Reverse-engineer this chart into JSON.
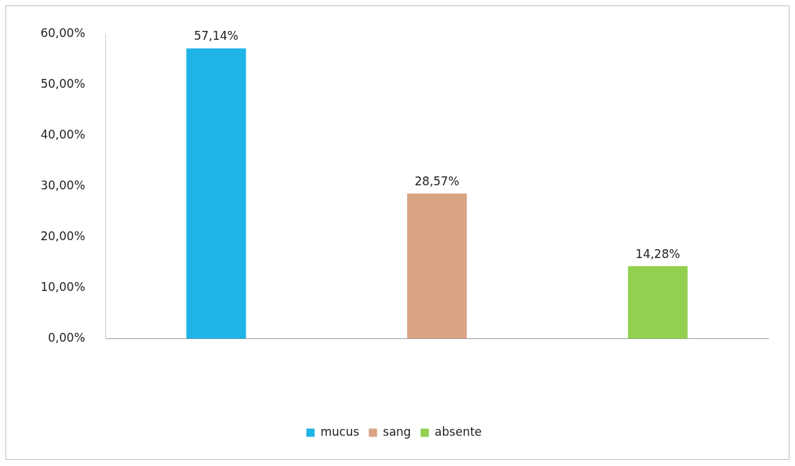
{
  "chart_data": {
    "type": "bar",
    "categories": [
      null,
      null,
      null
    ],
    "series": [
      {
        "name": "mucus",
        "color": "#1fb4e8",
        "values": [
          57.14,
          null,
          null
        ],
        "value_labels": [
          "57,14%",
          null,
          null
        ]
      },
      {
        "name": "sang",
        "color": "#d9a384",
        "values": [
          null,
          28.57,
          null
        ],
        "value_labels": [
          null,
          "28,57%",
          null
        ]
      },
      {
        "name": "absente",
        "color": "#92d050",
        "values": [
          null,
          null,
          14.28
        ],
        "value_labels": [
          null,
          null,
          "14,28%"
        ]
      }
    ],
    "ylim": [
      0,
      60
    ],
    "yticks": [
      {
        "value": 0,
        "label": "0,00%"
      },
      {
        "value": 10,
        "label": "10,00%"
      },
      {
        "value": 20,
        "label": "20,00%"
      },
      {
        "value": 30,
        "label": "30,00%"
      },
      {
        "value": 40,
        "label": "40,00%"
      },
      {
        "value": 50,
        "label": "50,00%"
      },
      {
        "value": 60,
        "label": "60,00%"
      }
    ],
    "grid": false,
    "legend": "bottom"
  }
}
